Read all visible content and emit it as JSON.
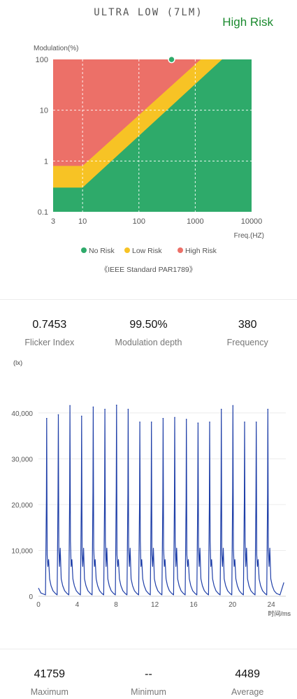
{
  "header": {
    "mode_title": "ULTRA LOW (7LM)",
    "risk_status": "High Risk"
  },
  "colors": {
    "no_risk": "#2eaa6a",
    "low_risk": "#f7c325",
    "high_risk": "#ec7068",
    "wave": "#1f3fa8"
  },
  "risk_chart": {
    "y_axis_title": "Modulation(%)",
    "x_axis_title": "Freq.(HZ)",
    "x_ticks": [
      "3",
      "10",
      "100",
      "1000",
      "10000"
    ],
    "y_ticks": [
      "0.1",
      "1",
      "10",
      "100"
    ],
    "legend": [
      {
        "label": "No Risk",
        "color": "#2eaa6a"
      },
      {
        "label": "Low Risk",
        "color": "#f7c325"
      },
      {
        "label": "High Risk",
        "color": "#ec7068"
      }
    ],
    "caption": "《IEEE Standard PAR1789》"
  },
  "stats_top": [
    {
      "value": "0.7453",
      "label": "Flicker Index"
    },
    {
      "value": "99.50%",
      "label": "Modulation depth"
    },
    {
      "value": "380",
      "label": "Frequency"
    }
  ],
  "stats_bottom": [
    {
      "value": "41759",
      "label": "Maximum"
    },
    {
      "value": "--",
      "label": "Minimum"
    },
    {
      "value": "4489",
      "label": "Average"
    }
  ],
  "chart_data": [
    {
      "type": "area",
      "title": "",
      "xlabel": "Freq.(HZ)",
      "ylabel": "Modulation(%)",
      "x_scale": "log",
      "y_scale": "log",
      "xlim": [
        3,
        10000
      ],
      "ylim": [
        0.1,
        100
      ],
      "regions": [
        {
          "name": "No Risk",
          "boundary": [
            [
              3,
              0.3
            ],
            [
              10,
              0.3
            ],
            [
              3000,
              100
            ]
          ]
        },
        {
          "name": "Low Risk",
          "boundary": [
            [
              3,
              0.8
            ],
            [
              10,
              0.8
            ],
            [
              1250,
              100
            ]
          ]
        },
        {
          "name": "High Risk"
        }
      ],
      "point": {
        "x": 380,
        "y": 99.5
      },
      "legend_position": "bottom"
    },
    {
      "type": "line",
      "title": "",
      "xlabel": "时间/ms",
      "ylabel": "(lx)",
      "xlim": [
        0,
        25.5
      ],
      "ylim": [
        0,
        45000
      ],
      "x_ticks": [
        0,
        4,
        8,
        12,
        16,
        20,
        24
      ],
      "y_ticks": [
        0,
        10000,
        20000,
        30000,
        40000
      ],
      "y_tick_labels": [
        "0",
        "10,000",
        "20,000",
        "30,000",
        "40,000"
      ],
      "grid": true,
      "baseline_lux": 300,
      "peaks": [
        {
          "t": 0.85,
          "lux": 38800
        },
        {
          "t": 2.05,
          "lux": 39600
        },
        {
          "t": 3.25,
          "lux": 41600
        },
        {
          "t": 4.45,
          "lux": 39300
        },
        {
          "t": 5.65,
          "lux": 41300
        },
        {
          "t": 6.85,
          "lux": 40800
        },
        {
          "t": 8.05,
          "lux": 41700
        },
        {
          "t": 9.25,
          "lux": 40800
        },
        {
          "t": 10.45,
          "lux": 38000
        },
        {
          "t": 11.65,
          "lux": 38000
        },
        {
          "t": 12.85,
          "lux": 38800
        },
        {
          "t": 14.05,
          "lux": 39000
        },
        {
          "t": 15.25,
          "lux": 38600
        },
        {
          "t": 16.45,
          "lux": 37800
        },
        {
          "t": 17.65,
          "lux": 38000
        },
        {
          "t": 18.85,
          "lux": 40800
        },
        {
          "t": 20.05,
          "lux": 41600
        },
        {
          "t": 21.25,
          "lux": 38000
        },
        {
          "t": 22.45,
          "lux": 38000
        },
        {
          "t": 23.65,
          "lux": 40800
        }
      ]
    }
  ]
}
